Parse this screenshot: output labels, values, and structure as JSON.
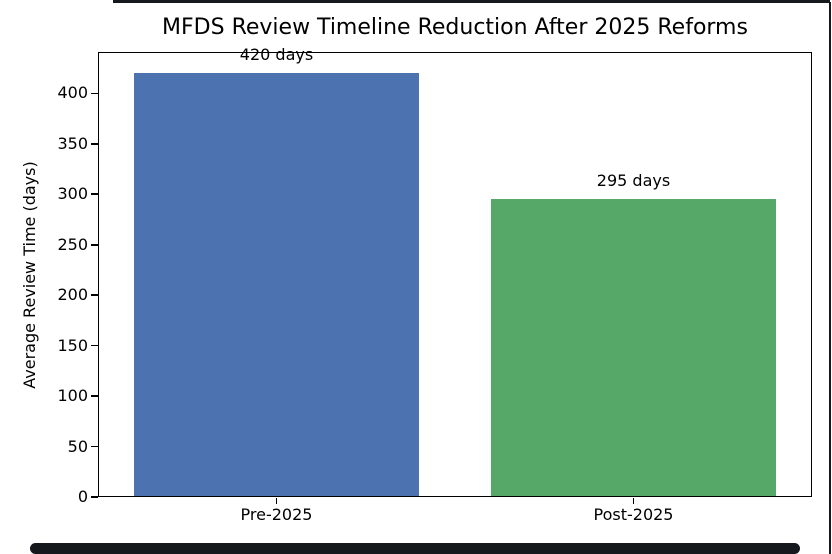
{
  "chart_data": {
    "type": "bar",
    "title": "MFDS Review Timeline Reduction After 2025 Reforms",
    "xlabel": "",
    "ylabel": "Average Review Time (days)",
    "categories": [
      "Pre-2025",
      "Post-2025"
    ],
    "values": [
      420,
      295
    ],
    "bar_labels": [
      "420 days",
      "295 days"
    ],
    "bar_colors": [
      "#4c72b0",
      "#55a868"
    ],
    "yticks": [
      0,
      50,
      100,
      150,
      200,
      250,
      300,
      350,
      400
    ],
    "ytick_labels": [
      "0",
      "50",
      "100",
      "150",
      "200",
      "250",
      "300",
      "350",
      "400"
    ],
    "ylim": [
      0,
      441
    ],
    "grid": false,
    "legend": null,
    "spine_color": "#000000",
    "text_color": "#000000"
  },
  "frame": {
    "color": "#15181c"
  }
}
